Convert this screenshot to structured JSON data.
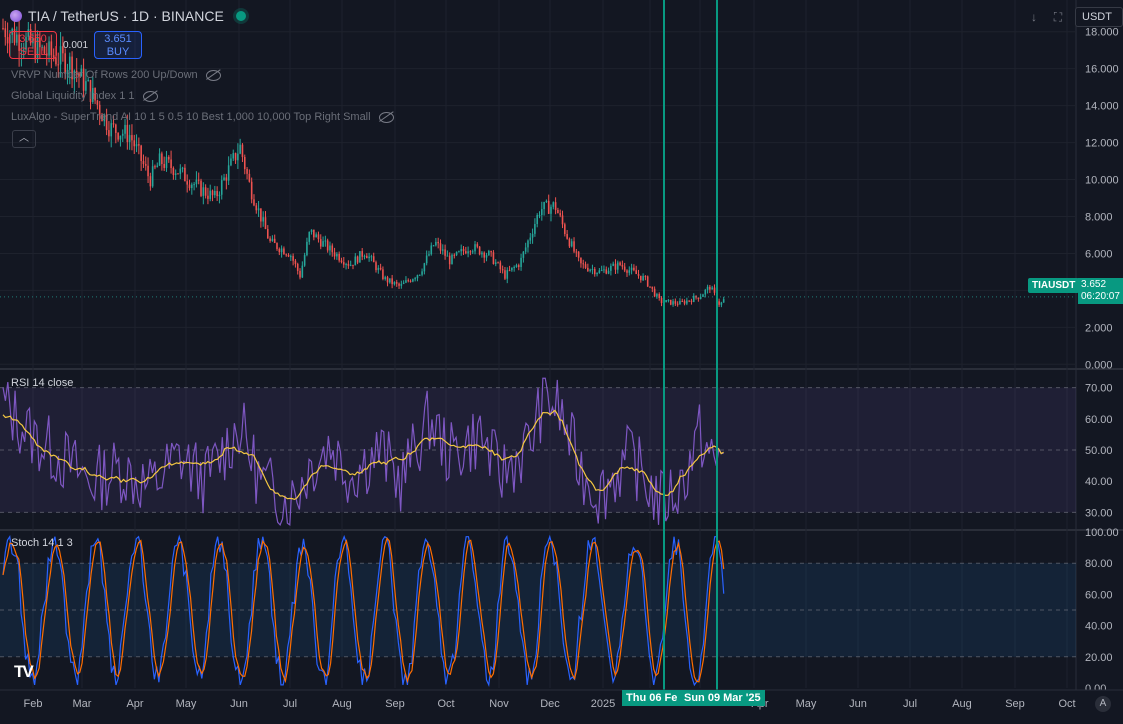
{
  "header": {
    "symbol": "TIA / TetherUS · 1D · BINANCE",
    "sell_price": "3.650",
    "sell_label": "SELL",
    "spread": "0.001",
    "buy_price": "3.651",
    "buy_label": "BUY",
    "currency": "USDT"
  },
  "indicators": [
    "VRVP Number Of Rows 200 Up/Down",
    "Global Liquidity Index 1 1",
    "LuxAlgo - SuperTrend AI 10 1 5 0.5 10 Best 1,000 10,000 Top Right Small"
  ],
  "price_tags": {
    "ticker": "TIAUSDT",
    "last_price": "3.652",
    "countdown": "06:20:07"
  },
  "crosshair_labels": [
    "Thu 06 Fe",
    "Sun 09 Mar '25"
  ],
  "colors": {
    "background": "#131722",
    "up": "#26a69a",
    "down": "#ef5350",
    "rsi": "#7e57c2",
    "rsi_ma": "#f5c842",
    "stoch_k": "#2962ff",
    "stoch_d": "#ff6d00",
    "cursor": "#089981"
  },
  "chart_data": [
    {
      "type": "candlestick",
      "title": "TIA / TetherUS · 1D · BINANCE",
      "ylim": [
        -0.2,
        19.5
      ],
      "y_ticks": [
        "18.000",
        "16.000",
        "14.000",
        "12.000",
        "10.000",
        "8.000",
        "6.000",
        "4.000",
        "2.000",
        "0.000"
      ],
      "x_ticks": [
        "Feb",
        "Mar",
        "Apr",
        "May",
        "Jun",
        "Jul",
        "Aug",
        "Sep",
        "Oct",
        "Nov",
        "Dec",
        "2025",
        "Apr",
        "May",
        "Jun",
        "Jul",
        "Aug",
        "Sep",
        "Oct"
      ],
      "months": [
        "2024-02",
        "2024-03",
        "2024-04",
        "2024-05",
        "2024-06",
        "2024-07",
        "2024-08",
        "2024-09",
        "2024-10",
        "2024-11",
        "2024-12",
        "2025-01",
        "2025-02",
        "2025-03",
        "2025-04"
      ],
      "monthly_close_approx": [
        17.5,
        13.8,
        9.6,
        9.2,
        7.3,
        5.9,
        5.5,
        4.6,
        5.7,
        5.0,
        8.6,
        5.1,
        3.6,
        3.7,
        3.65
      ],
      "last_price": 3.652
    },
    {
      "type": "line",
      "title": "RSI 14 close",
      "ylim": [
        25,
        75
      ],
      "y_ticks": [
        "70.00",
        "60.00",
        "50.00",
        "40.00",
        "30.00"
      ],
      "bands": [
        30,
        70
      ],
      "midline": 50,
      "series": [
        {
          "values_monthly_approx": [
            55,
            42,
            38,
            40,
            46,
            38,
            34,
            44,
            58,
            44,
            66,
            40,
            34,
            40,
            52
          ]
        },
        {
          "values_monthly_approx": [
            56,
            45,
            40,
            41,
            47,
            40,
            36,
            43,
            56,
            46,
            62,
            42,
            36,
            42,
            48
          ]
        }
      ]
    },
    {
      "type": "line",
      "title": "Stoch 14 1 3",
      "ylim": [
        0,
        100
      ],
      "y_ticks": [
        "100.00",
        "80.00",
        "60.00",
        "40.00",
        "20.00",
        "0.00"
      ],
      "bands": [
        20,
        80
      ],
      "midline": 50
    }
  ]
}
